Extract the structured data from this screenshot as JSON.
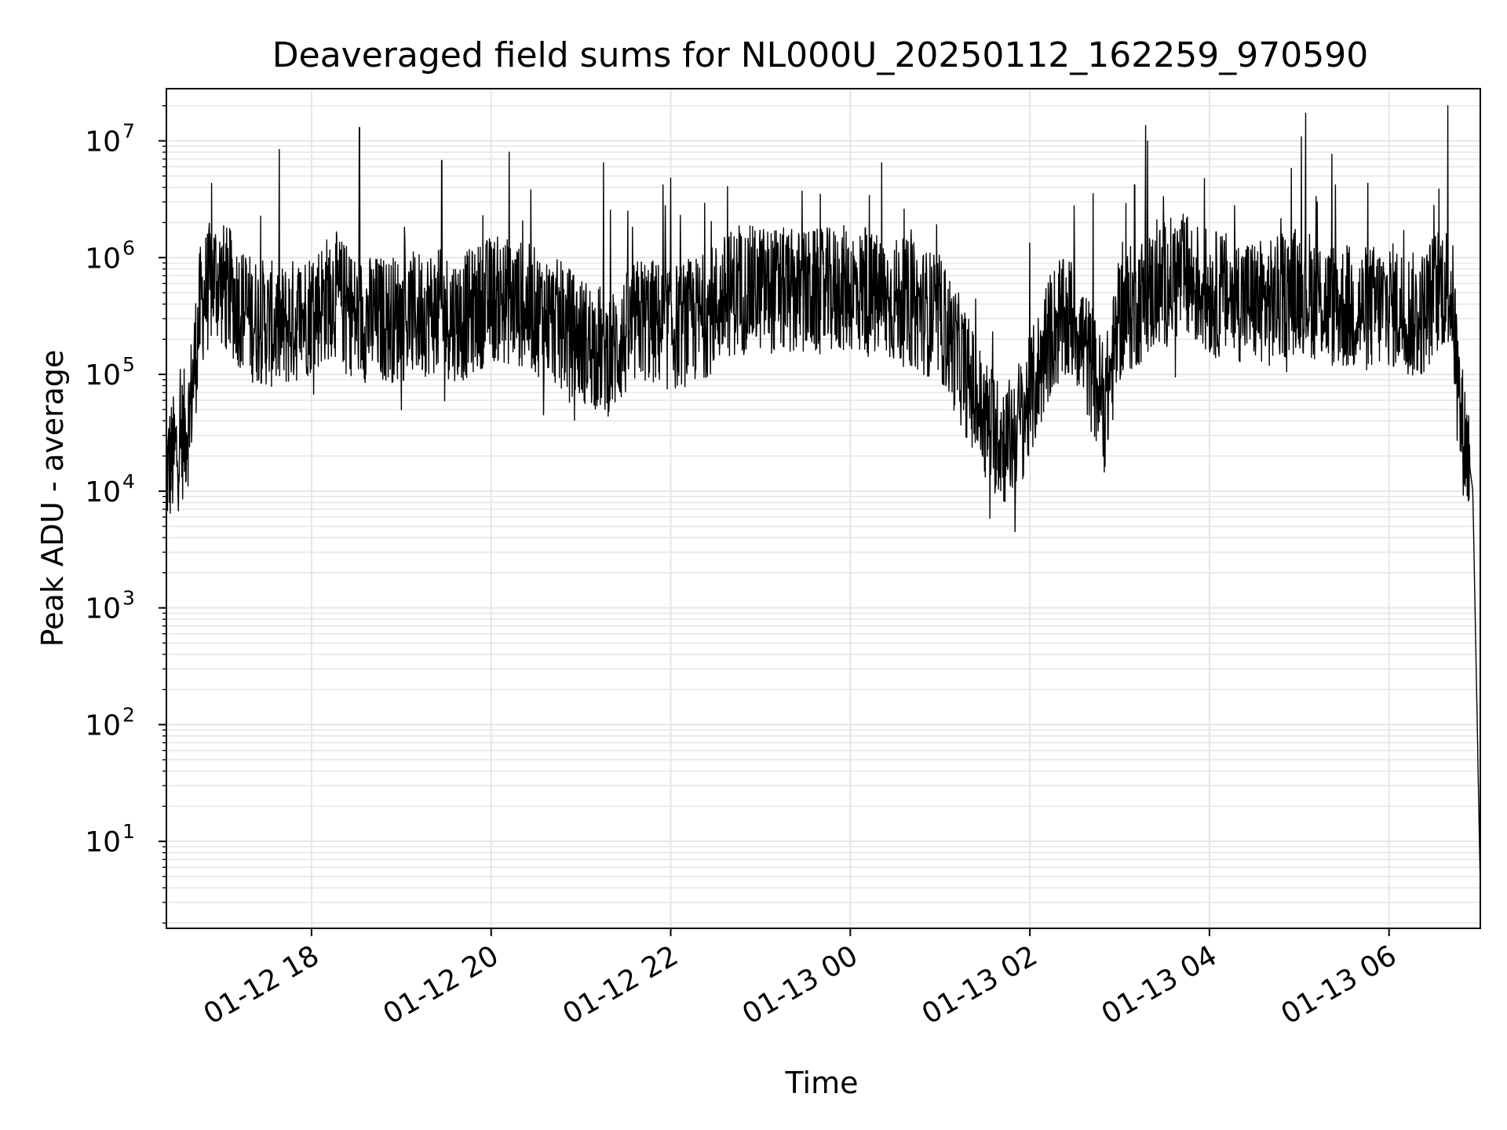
{
  "chart_data": {
    "type": "line",
    "title": "Deaveraged field sums for NL000U_20250112_162259_970590",
    "xlabel": "Time",
    "ylabel": "Peak ADU - average",
    "yscale": "log",
    "ylim": [
      1.8,
      28000000
    ],
    "xlim": [
      "2025-01-12 16:23",
      "2025-01-13 07:01"
    ],
    "grid": true,
    "line_color": "#000000",
    "grid_color": "#e6e6e6",
    "y_ticks": [
      {
        "base": "10",
        "exp": "1",
        "value": 10
      },
      {
        "base": "10",
        "exp": "2",
        "value": 100
      },
      {
        "base": "10",
        "exp": "3",
        "value": 1000
      },
      {
        "base": "10",
        "exp": "4",
        "value": 10000
      },
      {
        "base": "10",
        "exp": "5",
        "value": 100000
      },
      {
        "base": "10",
        "exp": "6",
        "value": 1000000
      },
      {
        "base": "10",
        "exp": "7",
        "value": 10000000
      }
    ],
    "x_ticks": [
      {
        "label": "01-12 18",
        "time": "2025-01-12 18:00"
      },
      {
        "label": "01-12 20",
        "time": "2025-01-12 20:00"
      },
      {
        "label": "01-12 22",
        "time": "2025-01-12 22:00"
      },
      {
        "label": "01-13 00",
        "time": "2025-01-13 00:00"
      },
      {
        "label": "01-13 02",
        "time": "2025-01-13 02:00"
      },
      {
        "label": "01-13 04",
        "time": "2025-01-13 04:00"
      },
      {
        "label": "01-13 06",
        "time": "2025-01-13 06:00"
      }
    ],
    "series": [
      {
        "x": [
          "2025-01-12 16:23",
          "2025-01-12 16:30",
          "2025-01-12 16:38",
          "2025-01-12 16:46",
          "2025-01-12 16:55",
          "2025-01-12 17:05",
          "2025-01-12 17:20",
          "2025-01-12 17:40",
          "2025-01-12 18:00",
          "2025-01-12 18:15",
          "2025-01-12 18:30",
          "2025-01-12 19:00",
          "2025-01-12 19:20",
          "2025-01-12 19:40",
          "2025-01-12 20:00",
          "2025-01-12 20:20",
          "2025-01-12 20:40",
          "2025-01-12 21:00",
          "2025-01-12 21:20",
          "2025-01-12 21:40",
          "2025-01-12 22:00",
          "2025-01-12 22:20",
          "2025-01-12 22:40",
          "2025-01-12 23:00",
          "2025-01-12 23:20",
          "2025-01-12 23:40",
          "2025-01-13 00:00",
          "2025-01-13 00:20",
          "2025-01-13 00:40",
          "2025-01-13 01:00",
          "2025-01-13 01:15",
          "2025-01-13 01:30",
          "2025-01-13 01:45",
          "2025-01-13 02:00",
          "2025-01-13 02:15",
          "2025-01-13 02:30",
          "2025-01-13 02:50",
          "2025-01-13 03:00",
          "2025-01-13 03:20",
          "2025-01-13 03:40",
          "2025-01-13 04:00",
          "2025-01-13 04:20",
          "2025-01-13 04:40",
          "2025-01-13 05:00",
          "2025-01-13 05:20",
          "2025-01-13 05:40",
          "2025-01-13 06:00",
          "2025-01-13 06:20",
          "2025-01-13 06:35",
          "2025-01-13 06:42",
          "2025-01-13 06:48",
          "2025-01-13 06:53",
          "2025-01-13 06:56",
          "2025-01-13 07:01"
        ],
        "y": [
          15000,
          22000,
          40000,
          400000,
          700000,
          500000,
          300000,
          250000,
          350000,
          500000,
          300000,
          300000,
          350000,
          300000,
          450000,
          400000,
          300000,
          200000,
          150000,
          300000,
          250000,
          300000,
          500000,
          550000,
          500000,
          500000,
          550000,
          450000,
          400000,
          300000,
          120000,
          40000,
          25000,
          60000,
          250000,
          300000,
          50000,
          300000,
          500000,
          700000,
          500000,
          450000,
          400000,
          550000,
          400000,
          350000,
          400000,
          300000,
          600000,
          500000,
          40000,
          20000,
          10000,
          4
        ]
      }
    ],
    "spikes": [
      {
        "x": "2025-01-12 18:32",
        "y": 13000000
      },
      {
        "x": "2025-01-12 19:27",
        "y": 6800000
      },
      {
        "x": "2025-01-12 20:12",
        "y": 8000000
      },
      {
        "x": "2025-01-12 21:15",
        "y": 6500000
      },
      {
        "x": "2025-01-12 22:00",
        "y": 4800000
      },
      {
        "x": "2025-01-12 23:40",
        "y": 3500000
      },
      {
        "x": "2025-01-13 00:10",
        "y": 1800000
      },
      {
        "x": "2025-01-13 01:50",
        "y": 4500
      },
      {
        "x": "2025-01-13 03:10",
        "y": 4200000
      },
      {
        "x": "2025-01-13 05:12",
        "y": 3000000
      },
      {
        "x": "2025-01-13 06:30",
        "y": 2800000
      },
      {
        "x": "2025-01-12 20:35",
        "y": 45000
      }
    ]
  }
}
